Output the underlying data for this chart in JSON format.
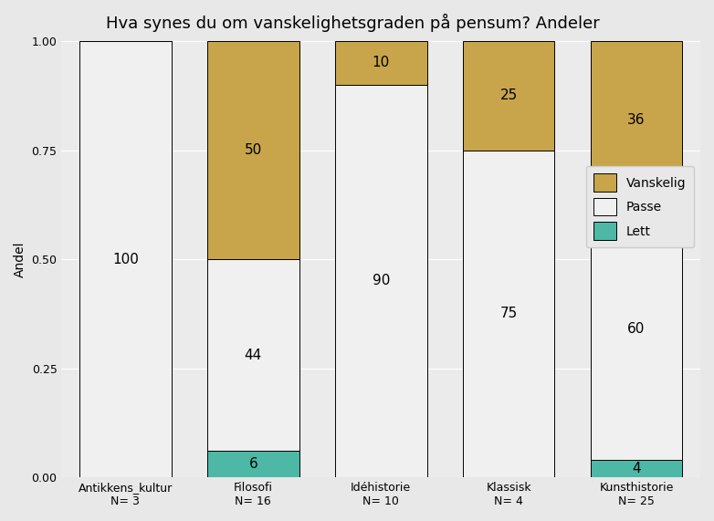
{
  "title": "Hva synes du om vanskelighetsgraden på pensum? Andeler",
  "ylabel": "Andel",
  "categories": [
    "Antikkens_kultur\nN= 3",
    "Filosofi\nN= 16",
    "Idéhistorie\nN= 10",
    "Klassisk\nN= 4",
    "Kunsthistorie\nN= 25"
  ],
  "segments": {
    "Lett": [
      0,
      0.06,
      0,
      0,
      0.04
    ],
    "Passe": [
      1.0,
      0.44,
      0.9,
      0.75,
      0.6
    ],
    "Vanskelig": [
      0,
      0.5,
      0.1,
      0.25,
      0.36
    ]
  },
  "labels": {
    "Lett": [
      "",
      "6",
      "",
      "",
      "4"
    ],
    "Passe": [
      "100",
      "44",
      "90",
      "75",
      "60"
    ],
    "Vanskelig": [
      "",
      "50",
      "10",
      "25",
      "36"
    ]
  },
  "colors": {
    "Lett": "#4cb8a5",
    "Passe": "#f0f0f0",
    "Vanskelig": "#c8a44a"
  },
  "legend_order": [
    "Vanskelig",
    "Passe",
    "Lett"
  ],
  "bar_width": 0.72,
  "ylim": [
    0,
    1.0
  ],
  "background_color": "#e8e8e8",
  "plot_background": "#ebebeb",
  "title_fontsize": 13,
  "axis_fontsize": 10,
  "tick_fontsize": 9,
  "label_fontsize": 11
}
